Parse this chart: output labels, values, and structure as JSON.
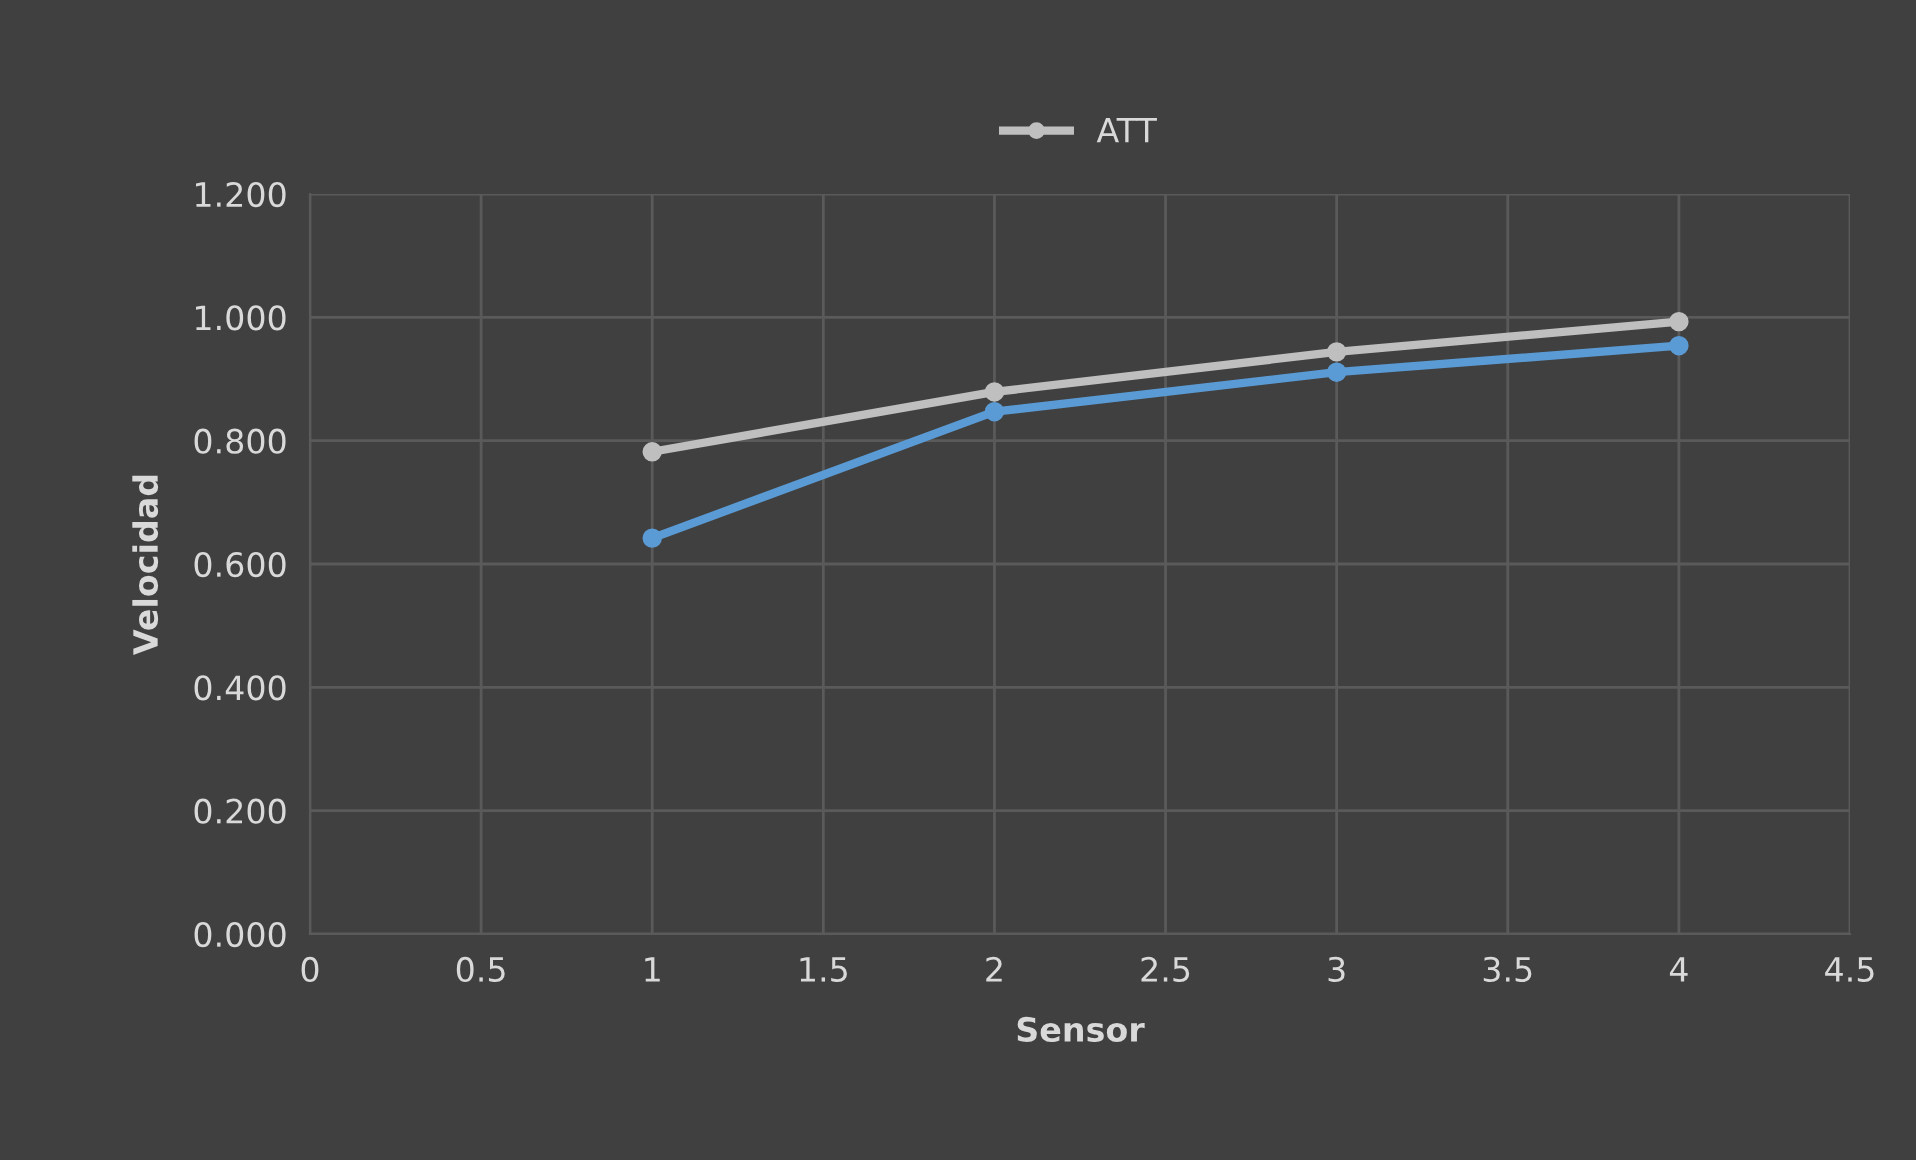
{
  "chart_data": {
    "type": "line",
    "xlabel": "Sensor",
    "ylabel": "Velocidad",
    "x": [
      1,
      2,
      3,
      4
    ],
    "series": [
      {
        "color": "#5b9bd5",
        "values": [
          0.642,
          0.847,
          0.911,
          0.954
        ]
      },
      {
        "name": "ATT",
        "color": "#bfbfbf",
        "values": [
          0.782,
          0.879,
          0.944,
          0.993
        ]
      }
    ],
    "xlim": [
      0,
      4.5
    ],
    "xticks": [
      0,
      0.5,
      1,
      1.5,
      2,
      2.5,
      3,
      3.5,
      4,
      4.5
    ],
    "ylim": [
      0,
      1.2
    ],
    "yticks": [
      {
        "value": 0,
        "label": "0.000"
      },
      {
        "value": 0.2,
        "label": "0.200"
      },
      {
        "value": 0.4,
        "label": "0.400"
      },
      {
        "value": 0.6,
        "label": "0.600"
      },
      {
        "value": 0.8,
        "label": "0.800"
      },
      {
        "value": 1.0,
        "label": "1.000"
      },
      {
        "value": 1.2,
        "label": "1.200"
      }
    ],
    "grid": true,
    "legend": "top",
    "marker": "circle",
    "line_style": "solid"
  }
}
